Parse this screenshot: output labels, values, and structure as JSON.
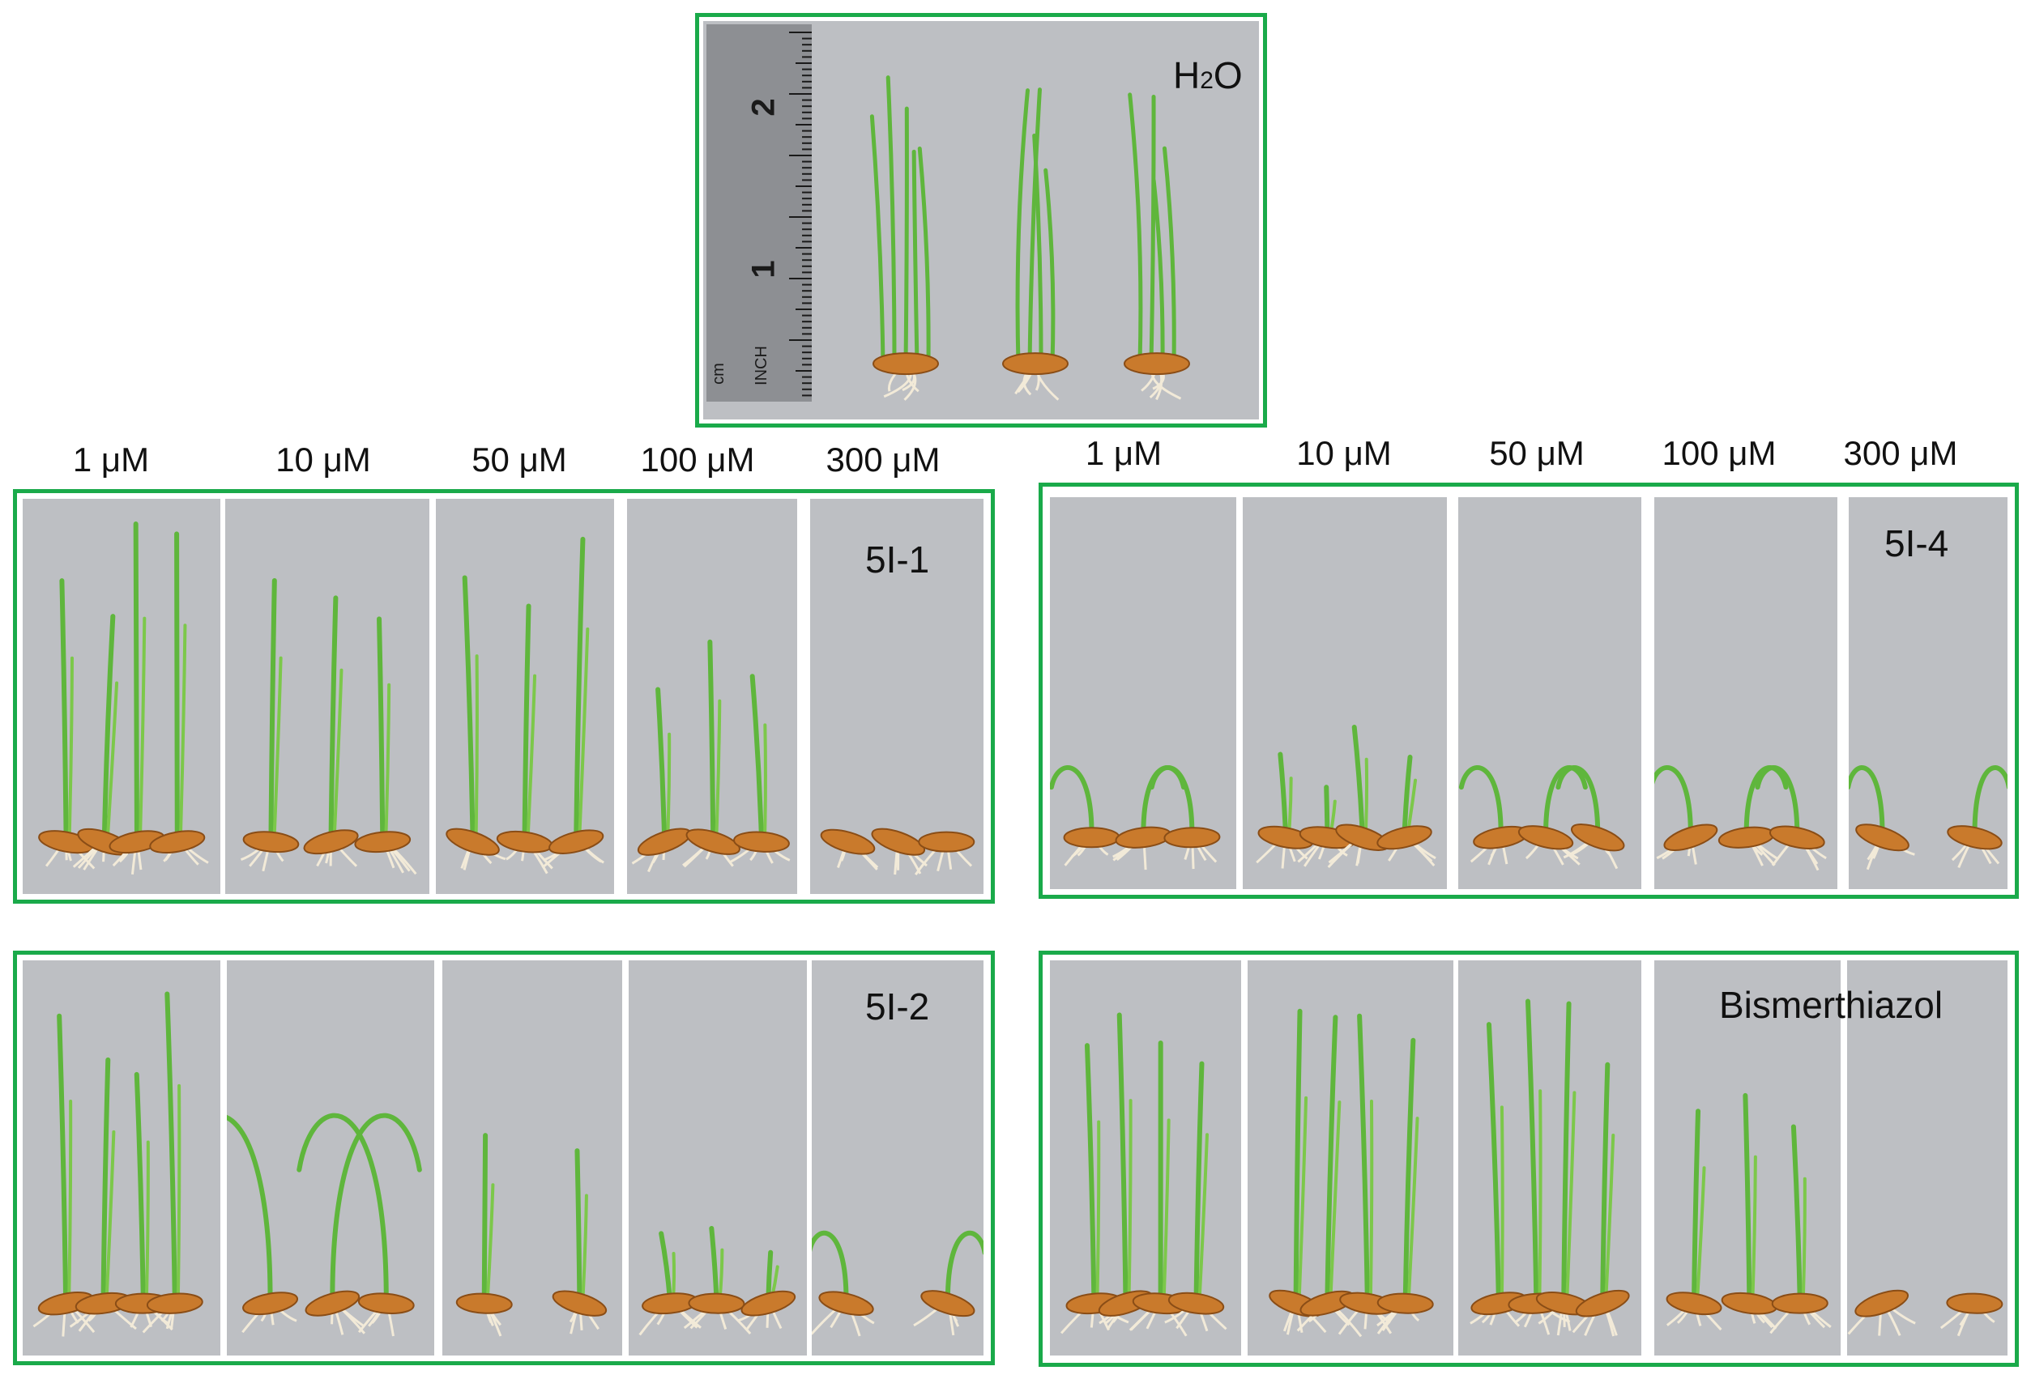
{
  "top_panel": {
    "label": "H2O",
    "ruler": {
      "inch_1": "1",
      "inch_2": "2",
      "cm_unit": "cm",
      "inch_unit": "INCH"
    }
  },
  "concentrations_left": [
    "1 μM",
    "10 μM",
    "50 μM",
    "100 μM",
    "300 μM"
  ],
  "concentrations_right": [
    "1 μM",
    "10 μM",
    "50 μM",
    "100 μM",
    "300 μM"
  ],
  "groups": {
    "g_5I1": {
      "label": "5I-1"
    },
    "g_5I2": {
      "label": "5I-2"
    },
    "g_5I4": {
      "label": "5I-4"
    },
    "g_bis": {
      "label": "Bismerthiazol"
    }
  },
  "colors": {
    "frame": "#1aaa4a",
    "background": "#bdbfc3",
    "leaf": "#5fb63c",
    "seed": "#c97a2c",
    "root": "#f2ead8"
  }
}
